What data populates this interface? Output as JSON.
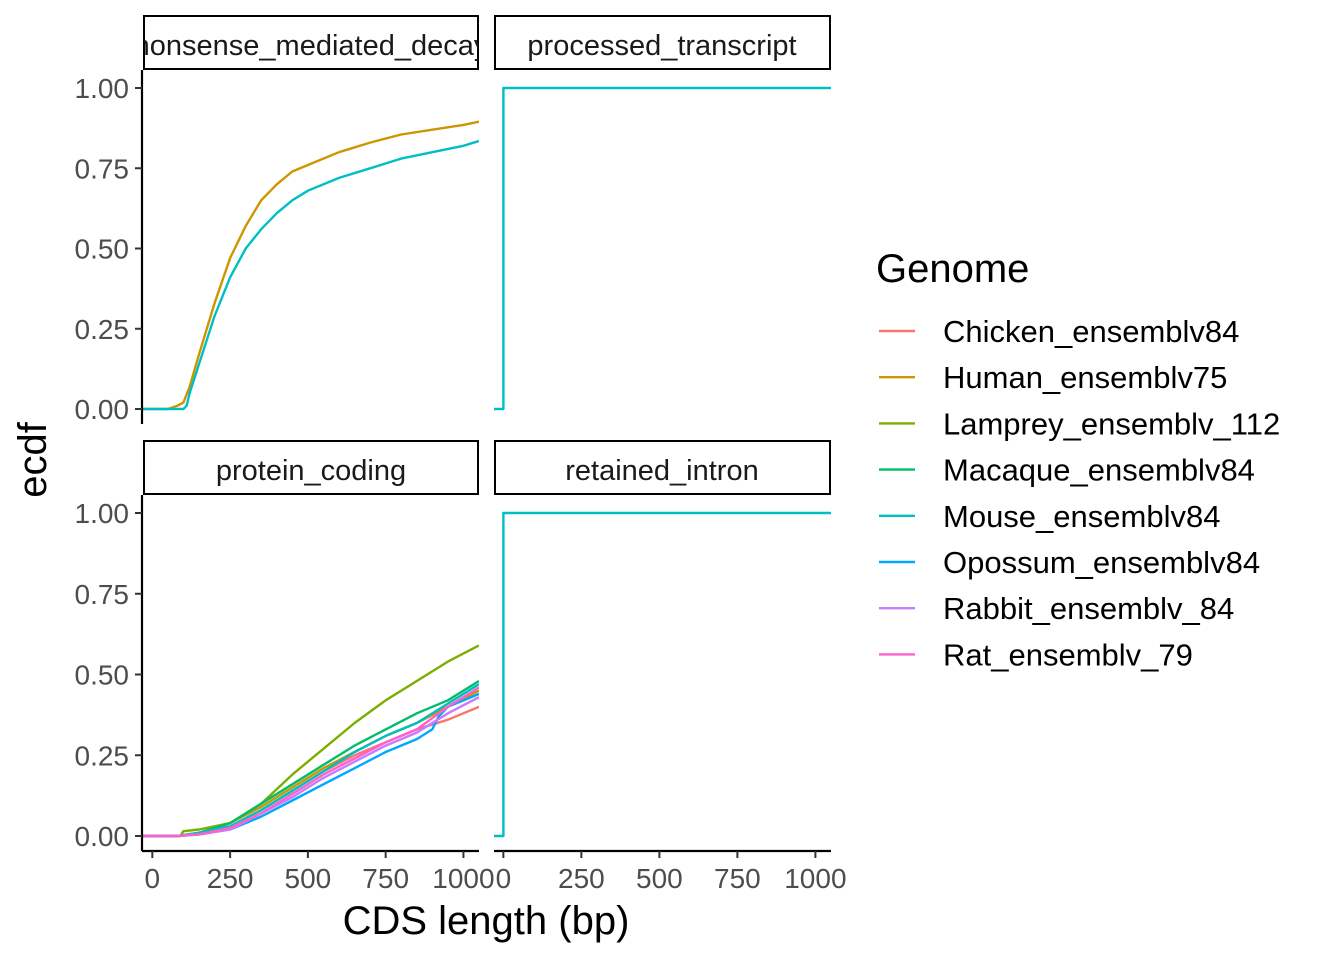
{
  "chart_data": {
    "type": "line",
    "step": true,
    "xlabel": "CDS length (bp)",
    "ylabel": "ecdf",
    "xlim": [
      -30,
      1050
    ],
    "ylim": [
      0,
      1
    ],
    "x_ticks": [
      0,
      250,
      500,
      750,
      1000
    ],
    "x_tick_labels": [
      "0",
      "250",
      "500",
      "750",
      "1000"
    ],
    "y_ticks": [
      0,
      0.25,
      0.5,
      0.75,
      1.0
    ],
    "y_tick_labels": [
      "0.00",
      "0.25",
      "0.50",
      "0.75",
      "1.00"
    ],
    "grid": false,
    "legend": {
      "title": "Genome",
      "position": "right",
      "entries": [
        {
          "name": "Chicken_ensemblv84",
          "color": "#F8766D"
        },
        {
          "name": "Human_ensemblv75",
          "color": "#CD9600"
        },
        {
          "name": "Lamprey_ensemblv_112",
          "color": "#7CAE00"
        },
        {
          "name": "Macaque_ensemblv84",
          "color": "#00BE67"
        },
        {
          "name": "Mouse_ensemblv84",
          "color": "#00BFC4"
        },
        {
          "name": "Opossum_ensemblv84",
          "color": "#00A9FF"
        },
        {
          "name": "Rabbit_ensemblv_84",
          "color": "#C77CFF"
        },
        {
          "name": "Rat_ensemblv_79",
          "color": "#FF61CC"
        }
      ]
    },
    "panels": [
      {
        "strip": "nonsense_mediated_decay",
        "series": [
          {
            "name": "Human_ensemblv75",
            "color": "#CD9600",
            "x": [
              -30,
              50,
              80,
              100,
              120,
              150,
              200,
              250,
              300,
              350,
              400,
              450,
              500,
              600,
              700,
              800,
              900,
              1000,
              1050
            ],
            "y": [
              0,
              0,
              0.01,
              0.02,
              0.07,
              0.17,
              0.33,
              0.47,
              0.57,
              0.65,
              0.7,
              0.74,
              0.76,
              0.8,
              0.83,
              0.855,
              0.87,
              0.885,
              0.895
            ]
          },
          {
            "name": "Mouse_ensemblv84",
            "color": "#00BFC4",
            "x": [
              -30,
              100,
              110,
              120,
              150,
              200,
              250,
              300,
              350,
              400,
              450,
              500,
              600,
              700,
              800,
              900,
              1000,
              1050
            ],
            "y": [
              0,
              0,
              0.01,
              0.05,
              0.14,
              0.29,
              0.41,
              0.5,
              0.56,
              0.61,
              0.65,
              0.68,
              0.72,
              0.75,
              0.78,
              0.8,
              0.82,
              0.835
            ]
          }
        ]
      },
      {
        "strip": "processed_transcript",
        "series": [
          {
            "name": "Mouse_ensemblv84",
            "color": "#00BFC4",
            "x": [
              -30,
              0,
              0,
              1050
            ],
            "y": [
              0,
              0,
              1,
              1
            ]
          }
        ]
      },
      {
        "strip": "protein_coding",
        "series": [
          {
            "name": "Chicken_ensemblv84",
            "color": "#F8766D",
            "x": [
              -30,
              80,
              150,
              250,
              350,
              450,
              550,
              650,
              750,
              850,
              950,
              1050
            ],
            "y": [
              0,
              0,
              0.01,
              0.03,
              0.08,
              0.14,
              0.2,
              0.25,
              0.29,
              0.33,
              0.36,
              0.4
            ]
          },
          {
            "name": "Human_ensemblv75",
            "color": "#CD9600",
            "x": [
              -30,
              80,
              150,
              250,
              350,
              450,
              550,
              650,
              750,
              850,
              950,
              1050
            ],
            "y": [
              0,
              0,
              0.01,
              0.04,
              0.09,
              0.15,
              0.21,
              0.26,
              0.31,
              0.35,
              0.4,
              0.45
            ]
          },
          {
            "name": "Lamprey_ensemblv_112",
            "color": "#7CAE00",
            "x": [
              -30,
              90,
              100,
              150,
              250,
              350,
              450,
              550,
              650,
              750,
              850,
              950,
              1050
            ],
            "y": [
              0,
              0,
              0.015,
              0.02,
              0.04,
              0.1,
              0.19,
              0.27,
              0.35,
              0.42,
              0.48,
              0.54,
              0.59
            ]
          },
          {
            "name": "Macaque_ensemblv84",
            "color": "#00BE67",
            "x": [
              -30,
              80,
              150,
              250,
              350,
              450,
              550,
              650,
              750,
              850,
              950,
              1050
            ],
            "y": [
              0,
              0,
              0.01,
              0.04,
              0.1,
              0.16,
              0.22,
              0.28,
              0.33,
              0.38,
              0.42,
              0.48
            ]
          },
          {
            "name": "Mouse_ensemblv84",
            "color": "#00BFC4",
            "x": [
              -30,
              80,
              150,
              250,
              350,
              450,
              550,
              650,
              750,
              850,
              950,
              1050
            ],
            "y": [
              0,
              0,
              0.01,
              0.03,
              0.08,
              0.14,
              0.2,
              0.26,
              0.31,
              0.35,
              0.41,
              0.47
            ]
          },
          {
            "name": "Opossum_ensemblv84",
            "color": "#00A9FF",
            "x": [
              -30,
              80,
              150,
              250,
              350,
              450,
              550,
              650,
              750,
              850,
              900,
              920,
              950,
              1050
            ],
            "y": [
              0,
              0,
              0.005,
              0.02,
              0.06,
              0.11,
              0.16,
              0.21,
              0.26,
              0.3,
              0.33,
              0.37,
              0.4,
              0.44
            ]
          },
          {
            "name": "Rabbit_ensemblv_84",
            "color": "#C77CFF",
            "x": [
              -30,
              80,
              150,
              250,
              350,
              450,
              550,
              650,
              750,
              850,
              950,
              1050
            ],
            "y": [
              0,
              0,
              0.005,
              0.02,
              0.07,
              0.12,
              0.18,
              0.23,
              0.28,
              0.32,
              0.38,
              0.43
            ]
          },
          {
            "name": "Rat_ensemblv_79",
            "color": "#FF61CC",
            "x": [
              -30,
              80,
              150,
              250,
              350,
              450,
              550,
              650,
              750,
              850,
              950,
              1050
            ],
            "y": [
              0,
              0,
              0.005,
              0.025,
              0.07,
              0.13,
              0.19,
              0.24,
              0.29,
              0.33,
              0.4,
              0.46
            ]
          }
        ]
      },
      {
        "strip": "retained_intron",
        "series": [
          {
            "name": "Mouse_ensemblv84",
            "color": "#00BFC4",
            "x": [
              -30,
              0,
              0,
              1050
            ],
            "y": [
              0,
              0,
              1,
              1
            ]
          }
        ]
      }
    ]
  }
}
